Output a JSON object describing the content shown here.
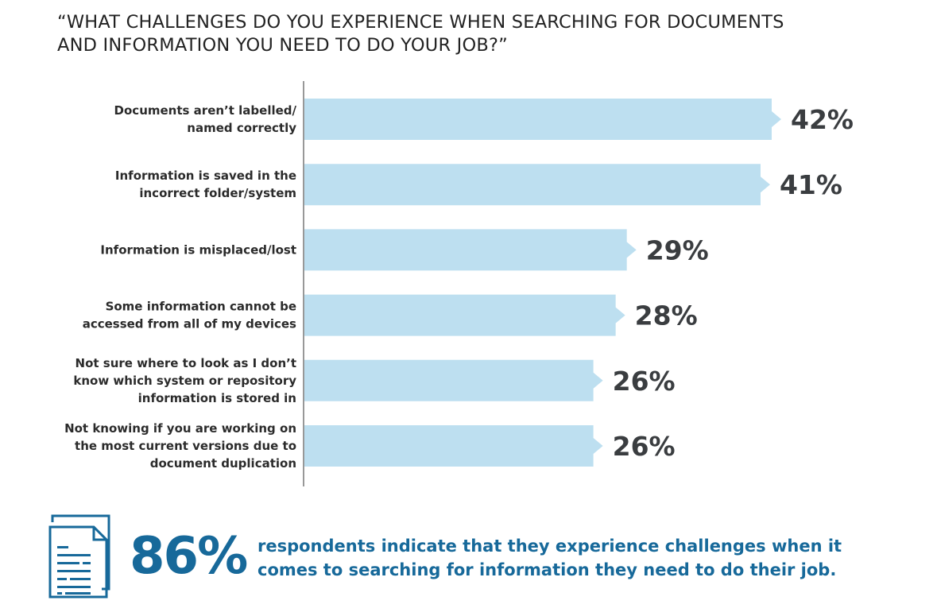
{
  "chart_data": {
    "type": "bar",
    "orientation": "horizontal",
    "title": "“WHAT CHALLENGES DO YOU EXPERIENCE WHEN SEARCHING FOR DOCUMENTS AND INFORMATION YOU NEED TO DO YOUR JOB?”",
    "title_lines": [
      "“WHAT CHALLENGES DO YOU EXPERIENCE WHEN SEARCHING FOR DOCUMENTS",
      "AND INFORMATION YOU NEED TO DO YOUR JOB?”"
    ],
    "categories": [
      [
        "Documents aren’t labelled/",
        "named correctly"
      ],
      [
        "Information is saved in the",
        "incorrect folder/system"
      ],
      [
        "Information is misplaced/lost"
      ],
      [
        "Some information cannot be",
        "accessed from all of my devices"
      ],
      [
        "Not sure where to look as I don’t",
        "know which system or repository",
        "information is stored in"
      ],
      [
        "Not knowing if you are working on",
        "the most current versions due to",
        "document duplication"
      ]
    ],
    "values": [
      42,
      41,
      29,
      28,
      26,
      26
    ],
    "value_labels": [
      "42%",
      "41%",
      "29%",
      "28%",
      "26%",
      "26%"
    ],
    "unit": "%",
    "xlim": [
      0,
      42
    ],
    "grid": false,
    "bar_color": "#bddff0",
    "label_color": "#3a3d40"
  },
  "callout": {
    "icon": "document-icon",
    "stat": "86%",
    "text_lines": [
      "respondents indicate that they experience challenges when it",
      "comes to searching for information they need to do their job."
    ],
    "color": "#17699a"
  }
}
